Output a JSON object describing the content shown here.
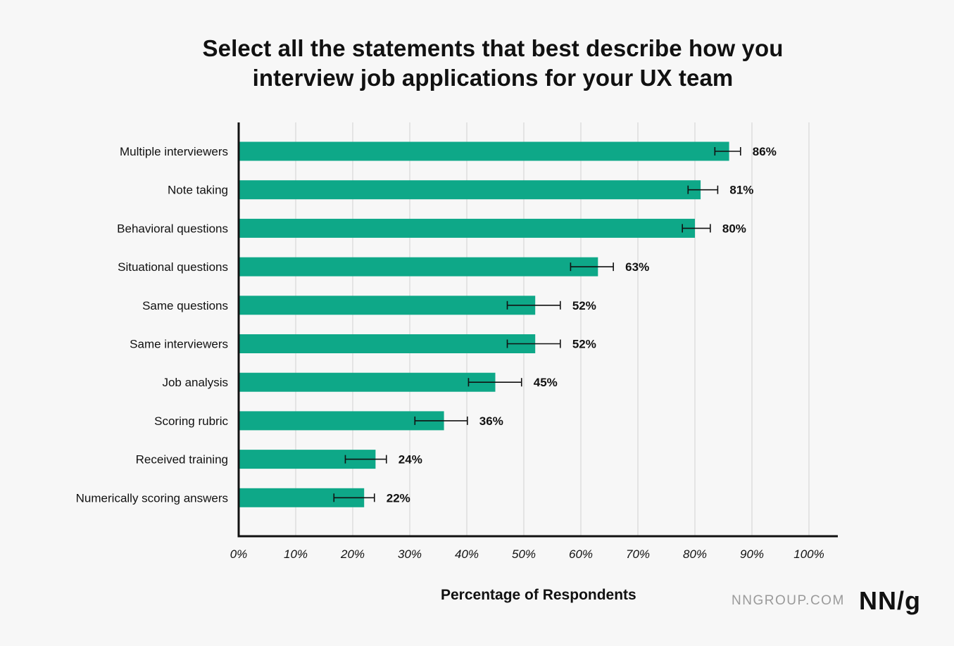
{
  "chart_data": {
    "type": "bar",
    "orientation": "horizontal",
    "title_lines": [
      "Select all the statements that best describe how you",
      "interview job applications for your UX team"
    ],
    "xlabel": "Percentage of Respondents",
    "ylabel": "",
    "xlim": [
      0,
      100
    ],
    "x_ticks": [
      0,
      10,
      20,
      30,
      40,
      50,
      60,
      70,
      80,
      90,
      100
    ],
    "x_tick_labels": [
      "0%",
      "10%",
      "20%",
      "30%",
      "40%",
      "50%",
      "60%",
      "70%",
      "80%",
      "90%",
      "100%"
    ],
    "grid": "vertical",
    "bar_color": "#0ea888",
    "categories": [
      "Multiple interviewers",
      "Note taking",
      "Behavioral questions",
      "Situational questions",
      "Same questions",
      "Same interviewers",
      "Job analysis",
      "Scoring rubric",
      "Received training",
      "Numerically scoring answers"
    ],
    "values": [
      86,
      81,
      80,
      63,
      52,
      52,
      45,
      36,
      24,
      22
    ],
    "value_labels": [
      "86%",
      "81%",
      "80%",
      "63%",
      "52%",
      "52%",
      "45%",
      "36%",
      "24%",
      "22%"
    ],
    "error_bars": [
      [
        83.5,
        88.0
      ],
      [
        78.8,
        84.0
      ],
      [
        77.8,
        82.7
      ],
      [
        58.2,
        65.7
      ],
      [
        47.1,
        56.4
      ],
      [
        47.1,
        56.4
      ],
      [
        40.3,
        49.6
      ],
      [
        30.9,
        40.1
      ],
      [
        18.7,
        25.9
      ],
      [
        16.7,
        23.8
      ]
    ]
  },
  "branding": {
    "site": "NNGROUP.COM",
    "logo": "NN/g"
  }
}
